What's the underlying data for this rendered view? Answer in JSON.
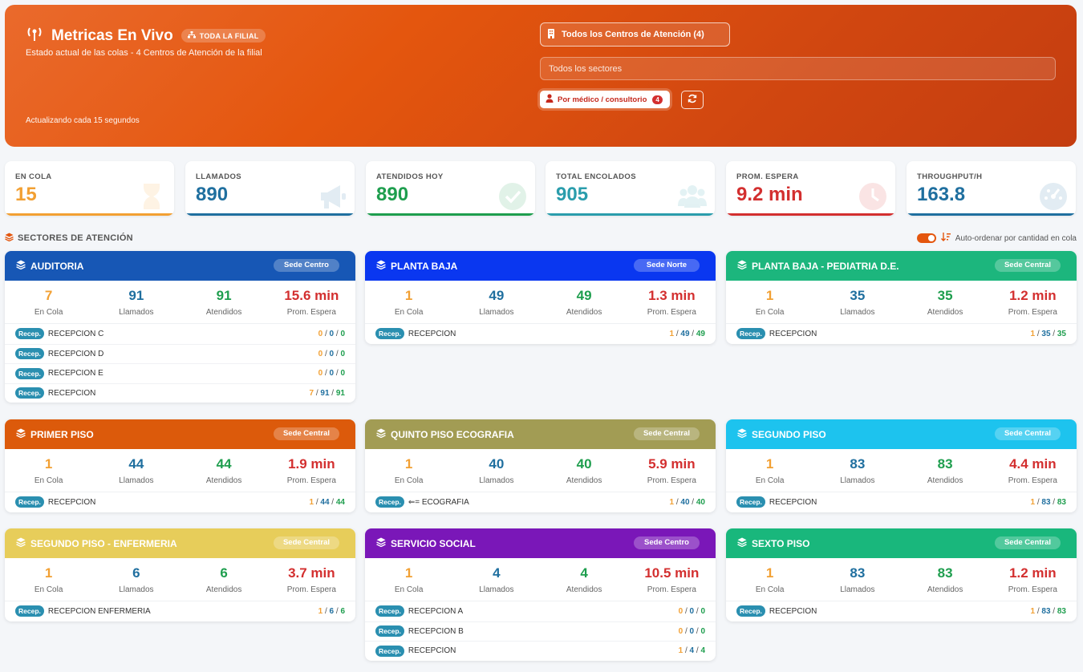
{
  "header": {
    "title": "Metricas En Vivo",
    "badge": "TODA LA FILIAL",
    "subtitle": "Estado actual de las colas - 4 Centros de Atención de la filial",
    "update_text": "Actualizando cada 15 segundos",
    "centros_button": "Todos los Centros de Atención (4)",
    "sectores_placeholder": "Todos los sectores",
    "medico_button": "Por médico / consultorio",
    "medico_count": "4",
    "accent": "#e4560e"
  },
  "stats": [
    {
      "label": "EN COLA",
      "value": "15",
      "color": "#f2a033",
      "icon": "hourglass-icon"
    },
    {
      "label": "LLAMADOS",
      "value": "890",
      "color": "#1f6f9f",
      "icon": "megaphone-icon"
    },
    {
      "label": "ATENDIDOS HOY",
      "value": "890",
      "color": "#1e9e4e",
      "icon": "check-circle-icon"
    },
    {
      "label": "TOTAL ENCOLADOS",
      "value": "905",
      "color": "#2a9dac",
      "icon": "users-icon"
    },
    {
      "label": "PROM. ESPERA",
      "value": "9.2 min",
      "color": "#d32f2f",
      "icon": "clock-icon"
    },
    {
      "label": "THROUGHPUT/H",
      "value": "163.8",
      "color": "#1f6f9f",
      "icon": "gauge-icon"
    }
  ],
  "sectors_section": {
    "title": "SECTORES DE ATENCIÓN",
    "auto_order_label": "Auto-ordenar por cantidad en cola"
  },
  "metric_labels": {
    "en_cola": "En Cola",
    "llamados": "Llamados",
    "atendidos": "Atendidos",
    "espera": "Prom. Espera"
  },
  "recep_badge": "Recep.",
  "sectors": [
    {
      "name": "AUDITORIA",
      "sede": "Sede Centro",
      "color": "#1757b5",
      "en_cola": "7",
      "llamados": "91",
      "atendidos": "91",
      "espera": "15.6 min",
      "rows": [
        {
          "name": "RECEPCION C",
          "a": "0",
          "b": "0",
          "c": "0"
        },
        {
          "name": "RECEPCION D",
          "a": "0",
          "b": "0",
          "c": "0"
        },
        {
          "name": "RECEPCION E",
          "a": "0",
          "b": "0",
          "c": "0"
        },
        {
          "name": "RECEPCION",
          "a": "7",
          "b": "91",
          "c": "91"
        }
      ]
    },
    {
      "name": "PLANTA BAJA",
      "sede": "Sede Norte",
      "color": "#0a37f0",
      "en_cola": "1",
      "llamados": "49",
      "atendidos": "49",
      "espera": "1.3 min",
      "rows": [
        {
          "name": "RECEPCION",
          "a": "1",
          "b": "49",
          "c": "49"
        }
      ]
    },
    {
      "name": "PLANTA BAJA - PEDIATRIA D.E.",
      "sede": "Sede Central",
      "color": "#1cb67d",
      "en_cola": "1",
      "llamados": "35",
      "atendidos": "35",
      "espera": "1.2 min",
      "rows": [
        {
          "name": "RECEPCION",
          "a": "1",
          "b": "35",
          "c": "35"
        }
      ]
    },
    {
      "name": "PRIMER PISO",
      "sede": "Sede Central",
      "color": "#dc5a0b",
      "en_cola": "1",
      "llamados": "44",
      "atendidos": "44",
      "espera": "1.9 min",
      "rows": [
        {
          "name": "RECEPCION",
          "a": "1",
          "b": "44",
          "c": "44"
        }
      ]
    },
    {
      "name": "QUINTO PISO ECOGRAFIA",
      "sede": "Sede Central",
      "color": "#a29c54",
      "en_cola": "1",
      "llamados": "40",
      "atendidos": "40",
      "espera": "5.9 min",
      "rows": [
        {
          "name": "⇐= ECOGRAFIA",
          "a": "1",
          "b": "40",
          "c": "40"
        }
      ]
    },
    {
      "name": "SEGUNDO PISO",
      "sede": "Sede Central",
      "color": "#1dc3ee",
      "en_cola": "1",
      "llamados": "83",
      "atendidos": "83",
      "espera": "4.4 min",
      "rows": [
        {
          "name": "RECEPCION",
          "a": "1",
          "b": "83",
          "c": "83"
        }
      ]
    },
    {
      "name": "SEGUNDO PISO - ENFERMERIA",
      "sede": "Sede Central",
      "color": "#e7cd5a",
      "en_cola": "1",
      "llamados": "6",
      "atendidos": "6",
      "espera": "3.7 min",
      "rows": [
        {
          "name": "RECEPCION ENFERMERIA",
          "a": "1",
          "b": "6",
          "c": "6"
        }
      ]
    },
    {
      "name": "SERVICIO SOCIAL",
      "sede": "Sede Centro",
      "color": "#7a17b8",
      "en_cola": "1",
      "llamados": "4",
      "atendidos": "4",
      "espera": "10.5 min",
      "rows": [
        {
          "name": "RECEPCION A",
          "a": "0",
          "b": "0",
          "c": "0"
        },
        {
          "name": "RECEPCION B",
          "a": "0",
          "b": "0",
          "c": "0"
        },
        {
          "name": "RECEPCION",
          "a": "1",
          "b": "4",
          "c": "4"
        }
      ]
    },
    {
      "name": "SEXTO PISO",
      "sede": "Sede Central",
      "color": "#19b77c",
      "en_cola": "1",
      "llamados": "83",
      "atendidos": "83",
      "espera": "1.2 min",
      "rows": [
        {
          "name": "RECEPCION",
          "a": "1",
          "b": "83",
          "c": "83"
        }
      ]
    }
  ]
}
